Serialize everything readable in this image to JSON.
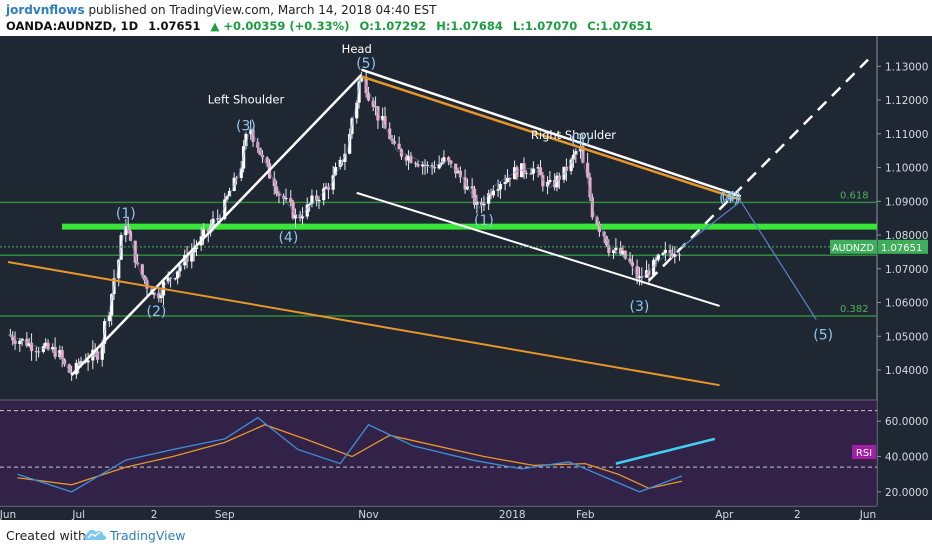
{
  "header": {
    "author": "jordvnflows",
    "published": "published on TradingView.com, March 14, 2018 04:40 EST",
    "symbol": "OANDA:AUDNZD, 1D",
    "last": "1.07651",
    "change": "▲ +0.00359 (+0.33%)",
    "open": "O:1.07292",
    "high": "H:1.07684",
    "low": "L:1.07070",
    "close": "C:1.07651"
  },
  "footer": {
    "created": "Created with",
    "brand": "TradingView"
  },
  "chart_data": {
    "type": "candlestick",
    "symbol": "AUDNZD",
    "price_axis": {
      "ticks": [
        "1.13000",
        "1.12000",
        "1.11000",
        "1.10000",
        "1.09000",
        "1.08000",
        "1.07000",
        "1.06000",
        "1.05000",
        "1.04000"
      ],
      "range": [
        1.032,
        1.139
      ],
      "last_label": "AUDNZD",
      "last_value": "1.07651"
    },
    "time_axis": {
      "ticks": [
        "Jun",
        "Jul",
        "2",
        "Sep",
        "Nov",
        "2018",
        "Feb",
        "Apr",
        "2",
        "Jun"
      ],
      "ticks_approx_dates": [
        "2017-06-01",
        "2017-07-01",
        "2017-08-02",
        "2017-09-01",
        "2017-11-01",
        "2018-01-01",
        "2018-02-01",
        "2018-04-01",
        "2018-05-02",
        "2018-06-01"
      ]
    },
    "price_path": [
      [
        "2017-06-01",
        1.0505
      ],
      [
        "2017-06-08",
        1.0485
      ],
      [
        "2017-06-15",
        1.0465
      ],
      [
        "2017-06-22",
        1.0455
      ],
      [
        "2017-06-28",
        1.0385
      ],
      [
        "2017-07-03",
        1.043
      ],
      [
        "2017-07-10",
        1.045
      ],
      [
        "2017-07-17",
        1.068
      ],
      [
        "2017-07-21",
        1.084
      ],
      [
        "2017-07-27",
        1.069
      ],
      [
        "2017-08-03",
        1.062
      ],
      [
        "2017-08-10",
        1.068
      ],
      [
        "2017-08-17",
        1.074
      ],
      [
        "2017-08-24",
        1.08
      ],
      [
        "2017-08-31",
        1.087
      ],
      [
        "2017-09-07",
        1.098
      ],
      [
        "2017-09-12",
        1.112
      ],
      [
        "2017-09-19",
        1.1
      ],
      [
        "2017-09-25",
        1.092
      ],
      [
        "2017-10-02",
        1.085
      ],
      [
        "2017-10-09",
        1.09
      ],
      [
        "2017-10-16",
        1.095
      ],
      [
        "2017-10-23",
        1.105
      ],
      [
        "2017-10-29",
        1.1275
      ],
      [
        "2017-11-06",
        1.115
      ],
      [
        "2017-11-13",
        1.105
      ],
      [
        "2017-11-20",
        1.103
      ],
      [
        "2017-11-27",
        1.1
      ],
      [
        "2017-12-04",
        1.102
      ],
      [
        "2017-12-11",
        1.097
      ],
      [
        "2017-12-18",
        1.088
      ],
      [
        "2017-12-25",
        1.095
      ],
      [
        "2018-01-03",
        1.099
      ],
      [
        "2018-01-10",
        1.1
      ],
      [
        "2018-01-17",
        1.094
      ],
      [
        "2018-01-24",
        1.099
      ],
      [
        "2018-01-30",
        1.106
      ],
      [
        "2018-02-05",
        1.086
      ],
      [
        "2018-02-12",
        1.076
      ],
      [
        "2018-02-19",
        1.073
      ],
      [
        "2018-02-24",
        1.0665
      ],
      [
        "2018-03-01",
        1.07
      ],
      [
        "2018-03-07",
        1.074
      ],
      [
        "2018-03-14",
        1.07651
      ]
    ],
    "horizontal_levels": [
      {
        "value": 1.0825,
        "color": "#39e639",
        "label": ""
      },
      {
        "value": 1.0897,
        "color": "#2e8b3a",
        "label": "0.618"
      },
      {
        "value": 1.074,
        "color": "#2e8b3a",
        "label": ""
      },
      {
        "value": 1.056,
        "color": "#2e8b3a",
        "label": "0.382"
      }
    ],
    "annotations": [
      "Head",
      "Left Shoulder",
      "Right Shoulder",
      "(1)",
      "(2)",
      "(3)",
      "(4)",
      "(5)",
      "(1)",
      "(3)",
      "(4)",
      "(3)",
      "(4)",
      "(5)",
      "0.618",
      "0.382"
    ],
    "rsi": {
      "label": "RSI",
      "ticks": [
        "60.0000",
        "40.0000",
        "20.0000"
      ],
      "range": [
        12,
        72
      ],
      "bands": [
        66,
        34
      ],
      "fast_line": [
        [
          "2017-06-05",
          30
        ],
        [
          "2017-06-28",
          20
        ],
        [
          "2017-07-21",
          38
        ],
        [
          "2017-08-10",
          44
        ],
        [
          "2017-09-01",
          50
        ],
        [
          "2017-09-15",
          62
        ],
        [
          "2017-10-02",
          44
        ],
        [
          "2017-10-20",
          36
        ],
        [
          "2017-11-01",
          58
        ],
        [
          "2017-11-20",
          46
        ],
        [
          "2017-12-15",
          38
        ],
        [
          "2018-01-05",
          33
        ],
        [
          "2018-01-25",
          37
        ],
        [
          "2018-02-10",
          28
        ],
        [
          "2018-02-24",
          20
        ],
        [
          "2018-03-14",
          29
        ]
      ],
      "slow_line": [
        [
          "2017-06-05",
          28
        ],
        [
          "2017-06-28",
          24
        ],
        [
          "2017-07-21",
          34
        ],
        [
          "2017-08-10",
          40
        ],
        [
          "2017-09-01",
          48
        ],
        [
          "2017-09-18",
          58
        ],
        [
          "2017-10-05",
          50
        ],
        [
          "2017-10-25",
          40
        ],
        [
          "2017-11-10",
          52
        ],
        [
          "2017-11-30",
          46
        ],
        [
          "2017-12-20",
          40
        ],
        [
          "2018-01-10",
          35
        ],
        [
          "2018-02-01",
          36
        ],
        [
          "2018-02-15",
          30
        ],
        [
          "2018-02-28",
          22
        ],
        [
          "2018-03-14",
          26
        ]
      ],
      "trend_line": {
        "from": [
          "2018-02-14",
          36
        ],
        "to": [
          "2018-03-28",
          50
        ],
        "color": "#3fd0f0"
      }
    }
  }
}
